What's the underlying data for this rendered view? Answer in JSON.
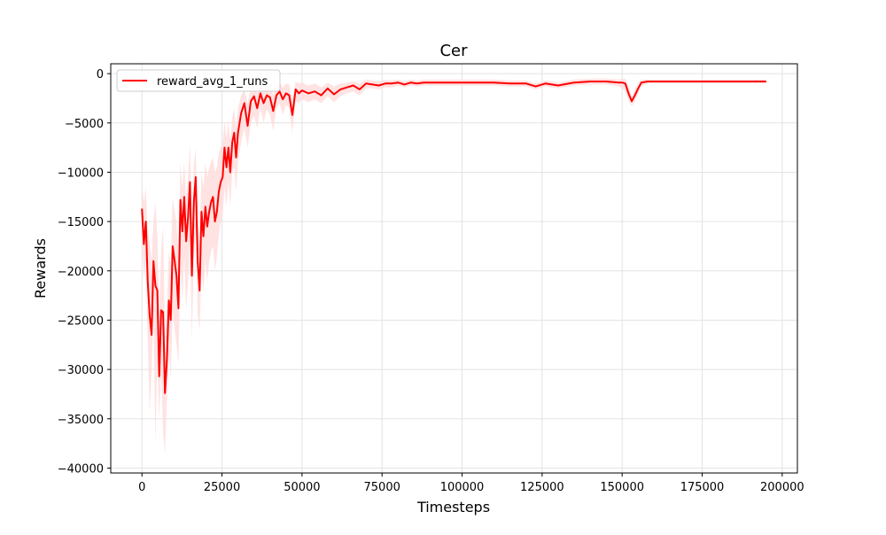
{
  "chart_data": {
    "type": "line",
    "title": "Cer",
    "xlabel": "Timesteps",
    "ylabel": "Rewards",
    "xlim": [
      -9750,
      204750
    ],
    "ylim": [
      -40500,
      1000
    ],
    "xticks": [
      0,
      25000,
      50000,
      75000,
      100000,
      125000,
      150000,
      175000,
      200000
    ],
    "xtick_labels": [
      "0",
      "25000",
      "50000",
      "75000",
      "100000",
      "125000",
      "150000",
      "175000",
      "200000"
    ],
    "yticks": [
      0,
      -5000,
      -10000,
      -15000,
      -20000,
      -25000,
      -30000,
      -35000,
      -40000
    ],
    "ytick_labels": [
      "0",
      "−5000",
      "−10000",
      "−15000",
      "−20000",
      "−25000",
      "−30000",
      "−35000",
      "−40000"
    ],
    "grid": true,
    "legend_position": "top-left",
    "colors": {
      "line": "#ff0000",
      "band": "#ffdcdc",
      "grid": "#e3e3e3"
    },
    "series": [
      {
        "name": "reward_avg_1_runs",
        "x": [
          0,
          600,
          1200,
          1800,
          2400,
          3000,
          3600,
          4200,
          4800,
          5400,
          6000,
          6600,
          7200,
          7800,
          8400,
          9000,
          9600,
          10200,
          10800,
          11400,
          12000,
          12600,
          13200,
          13800,
          14400,
          15000,
          15600,
          16200,
          16800,
          17400,
          18000,
          18600,
          19200,
          19800,
          20400,
          21000,
          21600,
          22200,
          22800,
          23400,
          24000,
          24600,
          25200,
          25800,
          26400,
          27000,
          27600,
          28200,
          28800,
          29400,
          30000,
          31000,
          32000,
          33000,
          34000,
          35000,
          36000,
          37000,
          38000,
          39000,
          40000,
          41000,
          42000,
          43000,
          44000,
          45000,
          46000,
          47000,
          48000,
          49000,
          50000,
          52000,
          54000,
          56000,
          58000,
          60000,
          62000,
          64000,
          66000,
          68000,
          70000,
          72000,
          74000,
          76000,
          78000,
          80000,
          82000,
          84000,
          86000,
          88000,
          90000,
          95000,
          100000,
          105000,
          110000,
          115000,
          120000,
          123000,
          126000,
          130000,
          135000,
          140000,
          145000,
          149000,
          150000,
          151000,
          152000,
          153000,
          154000,
          155000,
          156000,
          158000,
          160000,
          170000,
          180000,
          190000,
          195000
        ],
        "y": [
          -13700,
          -17300,
          -15000,
          -21000,
          -24500,
          -26500,
          -19000,
          -21500,
          -22000,
          -30700,
          -24000,
          -24200,
          -32400,
          -29000,
          -23000,
          -25000,
          -17500,
          -19000,
          -20500,
          -23800,
          -12800,
          -16000,
          -12500,
          -17000,
          -14500,
          -11000,
          -20500,
          -13000,
          -10500,
          -19000,
          -22000,
          -14000,
          -16500,
          -13500,
          -15500,
          -14000,
          -13000,
          -12500,
          -15000,
          -14000,
          -12000,
          -11000,
          -10500,
          -7500,
          -9500,
          -7500,
          -10000,
          -7000,
          -6000,
          -8500,
          -6000,
          -4000,
          -3000,
          -5300,
          -2800,
          -2300,
          -3500,
          -2000,
          -3000,
          -2200,
          -2400,
          -3800,
          -2200,
          -1800,
          -2600,
          -2000,
          -2200,
          -4200,
          -1600,
          -2000,
          -1700,
          -2000,
          -1800,
          -2200,
          -1500,
          -2100,
          -1600,
          -1400,
          -1200,
          -1600,
          -1000,
          -1100,
          -1200,
          -1000,
          -1000,
          -900,
          -1100,
          -900,
          -1000,
          -900,
          -900,
          -900,
          -900,
          -900,
          -900,
          -1000,
          -1000,
          -1300,
          -1000,
          -1200,
          -900,
          -800,
          -800,
          -900,
          -900,
          -1000,
          -2000,
          -2800,
          -2200,
          -1500,
          -900,
          -800,
          -800,
          -800,
          -800,
          -800,
          -800
        ],
        "band_low": [
          -16500,
          -21000,
          -19000,
          -27000,
          -34500,
          -30000,
          -24000,
          -37500,
          -29000,
          -35000,
          -30000,
          -36500,
          -38500,
          -33000,
          -28500,
          -31000,
          -24000,
          -26000,
          -27500,
          -29500,
          -19000,
          -23000,
          -18500,
          -24000,
          -21000,
          -16500,
          -27000,
          -19000,
          -15500,
          -24500,
          -26000,
          -20000,
          -22000,
          -19000,
          -21000,
          -19000,
          -18000,
          -17500,
          -20000,
          -18500,
          -16500,
          -15000,
          -14500,
          -11500,
          -13500,
          -11000,
          -13500,
          -10000,
          -9500,
          -12000,
          -9000,
          -7000,
          -5500,
          -7500,
          -5000,
          -4300,
          -5500,
          -3500,
          -5000,
          -3600,
          -4200,
          -5800,
          -3500,
          -3000,
          -4200,
          -3200,
          -3500,
          -6000,
          -2800,
          -3000,
          -2600,
          -2900,
          -2600,
          -3000,
          -2300,
          -2900,
          -2300,
          -2000,
          -1800,
          -2200,
          -1500,
          -1500,
          -1600,
          -1400,
          -1400,
          -1200,
          -1400,
          -1200,
          -1300,
          -1200,
          -1200,
          -1200,
          -1200,
          -1200,
          -1200,
          -1300,
          -1300,
          -1600,
          -1300,
          -1500,
          -1200,
          -1100,
          -1100,
          -1300,
          -1500,
          -1800,
          -2700,
          -3300,
          -2800,
          -2000,
          -1200,
          -1000,
          -1000,
          -1000,
          -1000,
          -1000,
          -1000
        ],
        "band_high": [
          -11200,
          -13000,
          -11500,
          -16000,
          -17000,
          -19000,
          -15000,
          -13000,
          -16500,
          -24000,
          -18000,
          -15500,
          -26500,
          -23500,
          -18000,
          -19500,
          -12500,
          -14000,
          -15000,
          -18500,
          -9000,
          -11500,
          -9000,
          -12500,
          -10500,
          -7200,
          -15000,
          -9200,
          -7500,
          -14500,
          -17500,
          -10000,
          -11500,
          -9000,
          -10500,
          -9500,
          -9000,
          -8500,
          -10000,
          -9500,
          -8000,
          -7500,
          -7000,
          -4800,
          -6500,
          -4800,
          -6800,
          -4500,
          -3500,
          -5500,
          -3500,
          -2200,
          -1600,
          -3000,
          -1500,
          -1200,
          -2000,
          -1000,
          -1600,
          -1200,
          -1200,
          -2200,
          -1100,
          -900,
          -1400,
          -1000,
          -1100,
          -2500,
          -800,
          -1000,
          -900,
          -1200,
          -1000,
          -1400,
          -900,
          -1300,
          -1000,
          -900,
          -800,
          -1000,
          -600,
          -700,
          -800,
          -650,
          -700,
          -600,
          -750,
          -600,
          -700,
          -600,
          -600,
          -600,
          -600,
          -600,
          -600,
          -700,
          -700,
          -1000,
          -700,
          -900,
          -600,
          -500,
          -500,
          -600,
          -500,
          -500,
          -1300,
          -2300,
          -1600,
          -1000,
          -600,
          -600,
          -600,
          -600,
          -600,
          -600,
          -600
        ]
      }
    ]
  }
}
